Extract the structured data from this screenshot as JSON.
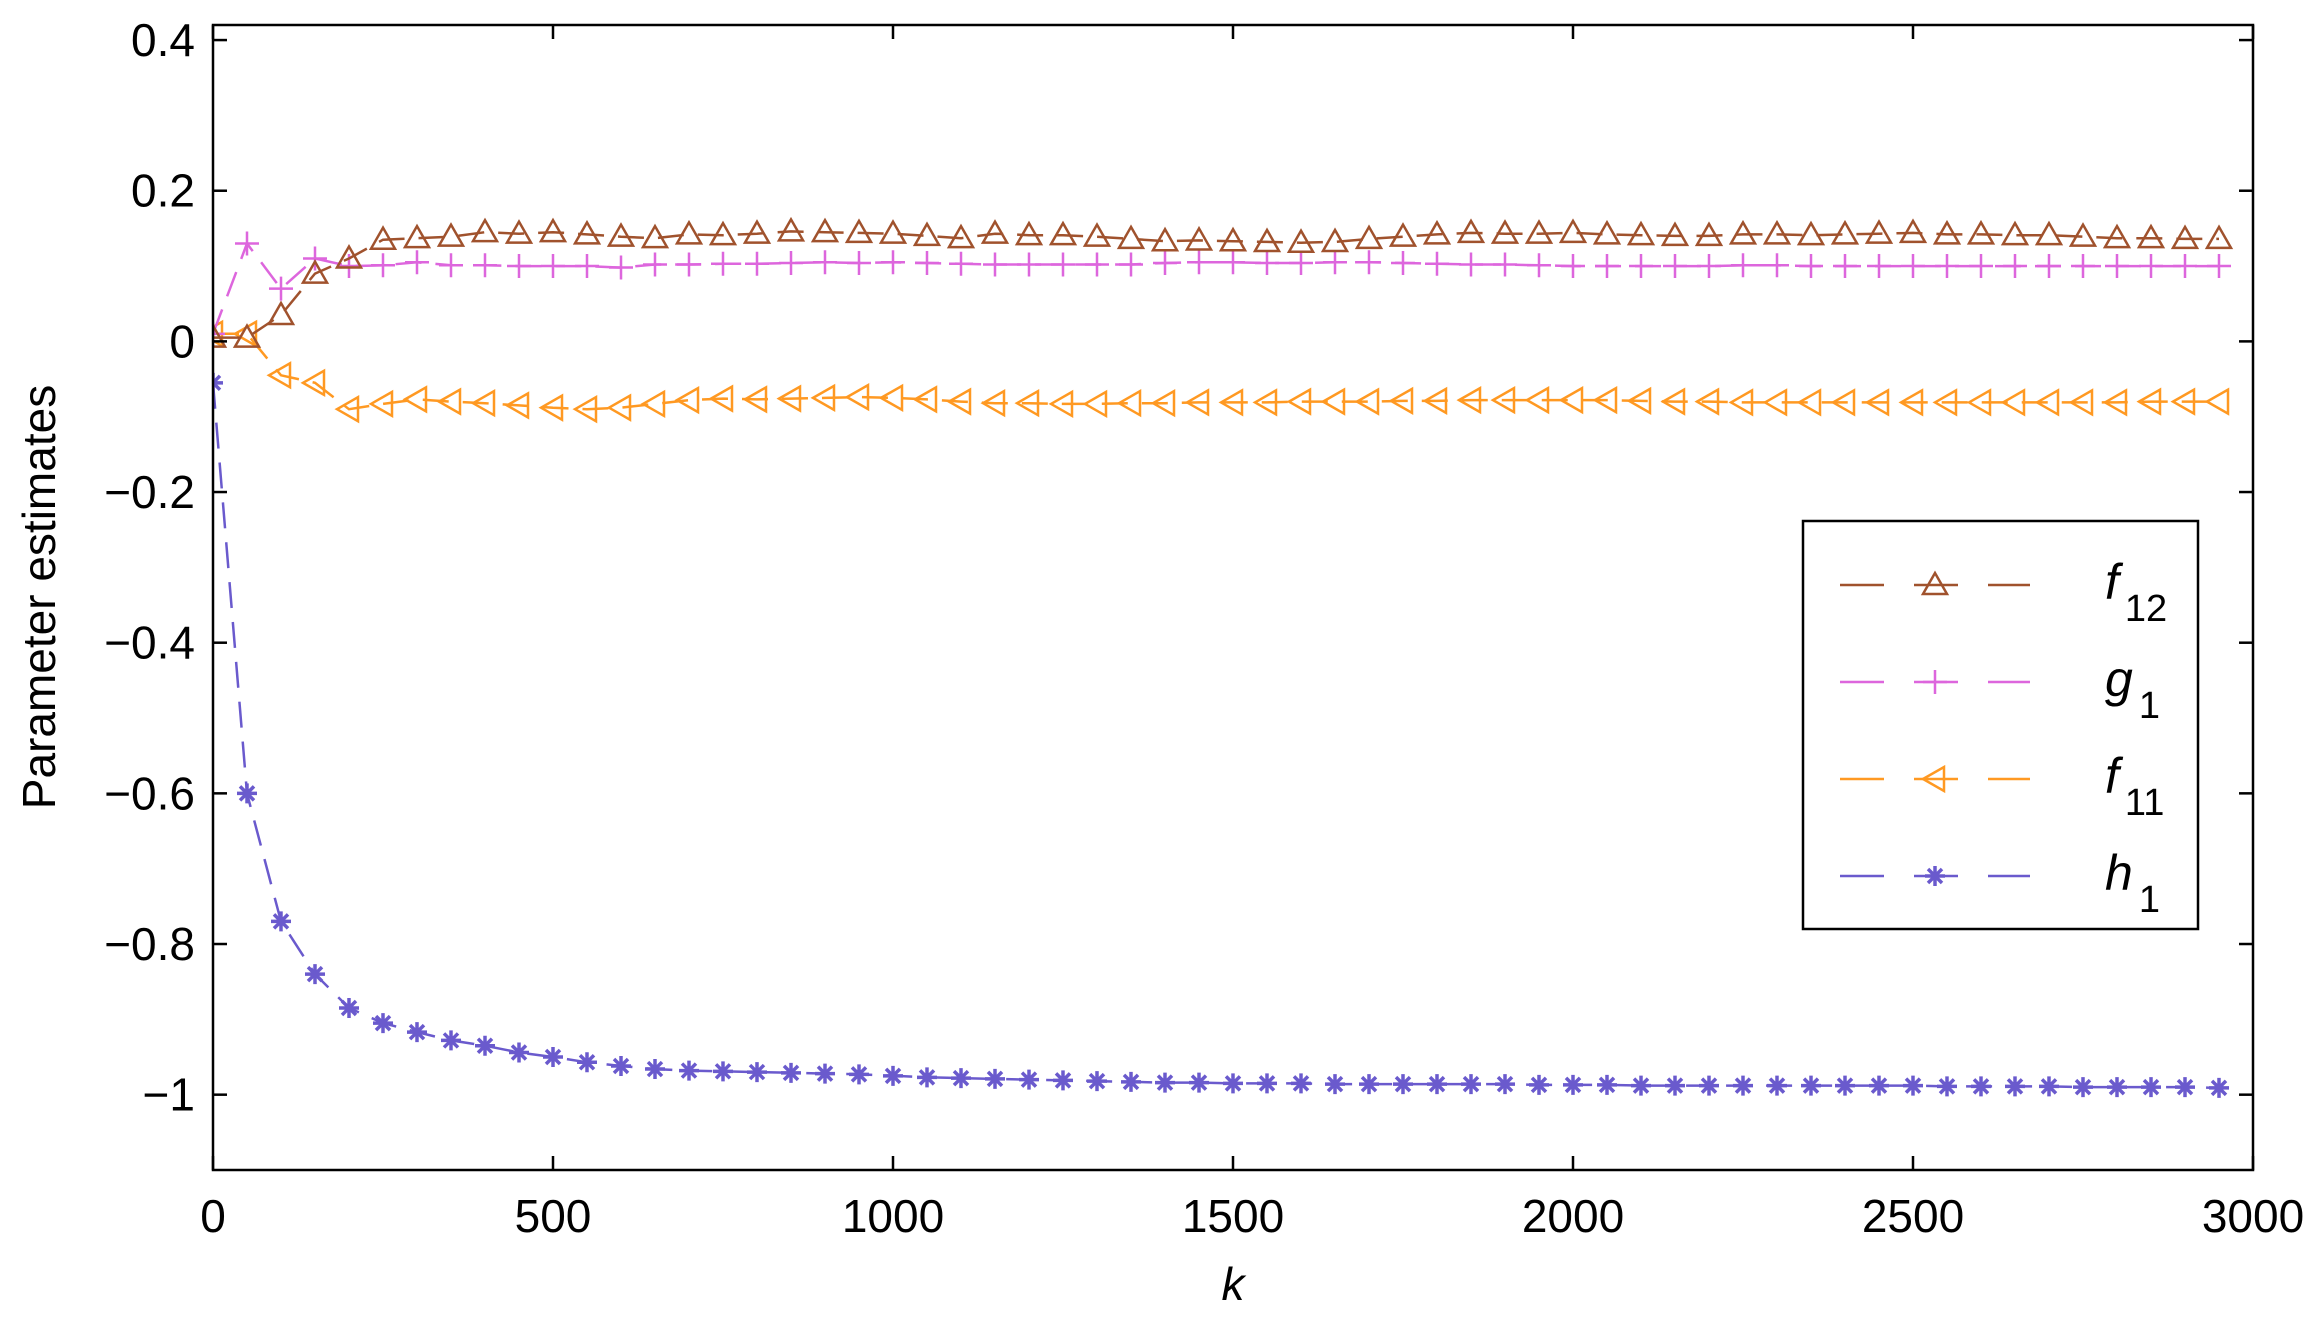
{
  "chart_data": {
    "type": "line",
    "title": "",
    "xlabel": "k",
    "ylabel": "Parameter estimates",
    "xlim": [
      0,
      3000
    ],
    "ylim": [
      -1.1,
      0.42
    ],
    "xticks": [
      0,
      500,
      1000,
      1500,
      2000,
      2500,
      3000
    ],
    "xtick_labels": [
      "0",
      "500",
      "1000",
      "1500",
      "2000",
      "2500",
      "3000"
    ],
    "yticks": [
      0.4,
      0.2,
      0,
      -0.2,
      -0.4,
      -0.6,
      -0.8,
      -1
    ],
    "ytick_labels": [
      "0.4",
      "0.2",
      "0",
      "−0.2",
      "−0.4",
      "−0.6",
      "−0.8",
      "−1"
    ],
    "grid": false,
    "legend_position": "right",
    "x": [
      0,
      50,
      100,
      150,
      200,
      250,
      300,
      350,
      400,
      450,
      500,
      550,
      600,
      650,
      700,
      750,
      800,
      850,
      900,
      950,
      1000,
      1050,
      1100,
      1150,
      1200,
      1250,
      1300,
      1350,
      1400,
      1450,
      1500,
      1550,
      1600,
      1650,
      1700,
      1750,
      1800,
      1850,
      1900,
      1950,
      2000,
      2050,
      2100,
      2150,
      2200,
      2250,
      2300,
      2350,
      2400,
      2450,
      2500,
      2550,
      2600,
      2650,
      2700,
      2750,
      2800,
      2850,
      2900,
      2950
    ],
    "series": [
      {
        "name": "f12",
        "name_base": "f",
        "name_sub": "12",
        "color": "#a0522d",
        "marker": "triangle-up",
        "values": [
          0.005,
          0.005,
          0.035,
          0.09,
          0.11,
          0.135,
          0.137,
          0.139,
          0.145,
          0.143,
          0.145,
          0.142,
          0.139,
          0.137,
          0.142,
          0.141,
          0.143,
          0.146,
          0.145,
          0.144,
          0.143,
          0.14,
          0.137,
          0.143,
          0.141,
          0.141,
          0.139,
          0.136,
          0.133,
          0.134,
          0.133,
          0.132,
          0.131,
          0.132,
          0.136,
          0.139,
          0.142,
          0.144,
          0.143,
          0.143,
          0.144,
          0.142,
          0.141,
          0.14,
          0.14,
          0.142,
          0.142,
          0.141,
          0.142,
          0.143,
          0.144,
          0.142,
          0.142,
          0.141,
          0.141,
          0.139,
          0.137,
          0.137,
          0.136,
          0.136
        ]
      },
      {
        "name": "g1",
        "name_base": "g",
        "name_sub": "1",
        "color": "#dd66dd",
        "marker": "plus",
        "values": [
          0.01,
          0.13,
          0.07,
          0.11,
          0.1,
          0.101,
          0.105,
          0.101,
          0.101,
          0.1,
          0.1,
          0.1,
          0.098,
          0.102,
          0.102,
          0.103,
          0.103,
          0.104,
          0.105,
          0.104,
          0.105,
          0.104,
          0.103,
          0.102,
          0.102,
          0.102,
          0.102,
          0.102,
          0.104,
          0.105,
          0.105,
          0.104,
          0.104,
          0.105,
          0.105,
          0.104,
          0.103,
          0.102,
          0.102,
          0.101,
          0.1,
          0.1,
          0.1,
          0.1,
          0.1,
          0.101,
          0.101,
          0.1,
          0.1,
          0.1,
          0.1,
          0.1,
          0.1,
          0.1,
          0.1,
          0.1,
          0.1,
          0.1,
          0.1,
          0.1
        ]
      },
      {
        "name": "f11",
        "name_base": "f",
        "name_sub": "11",
        "color": "#ff9922",
        "marker": "triangle-left",
        "values": [
          0.01,
          0.01,
          -0.045,
          -0.055,
          -0.09,
          -0.083,
          -0.077,
          -0.08,
          -0.082,
          -0.085,
          -0.088,
          -0.09,
          -0.088,
          -0.083,
          -0.078,
          -0.076,
          -0.077,
          -0.076,
          -0.075,
          -0.074,
          -0.075,
          -0.077,
          -0.08,
          -0.082,
          -0.082,
          -0.083,
          -0.083,
          -0.082,
          -0.082,
          -0.081,
          -0.081,
          -0.081,
          -0.08,
          -0.08,
          -0.08,
          -0.079,
          -0.079,
          -0.078,
          -0.078,
          -0.078,
          -0.078,
          -0.078,
          -0.079,
          -0.08,
          -0.08,
          -0.081,
          -0.081,
          -0.081,
          -0.081,
          -0.081,
          -0.081,
          -0.081,
          -0.081,
          -0.081,
          -0.081,
          -0.081,
          -0.081,
          -0.08,
          -0.08,
          -0.08
        ]
      },
      {
        "name": "h1",
        "name_base": "h",
        "name_sub": "1",
        "color": "#6a5acd",
        "marker": "star",
        "values": [
          -0.055,
          -0.6,
          -0.77,
          -0.84,
          -0.885,
          -0.905,
          -0.917,
          -0.928,
          -0.935,
          -0.944,
          -0.95,
          -0.957,
          -0.962,
          -0.966,
          -0.968,
          -0.969,
          -0.97,
          -0.971,
          -0.972,
          -0.973,
          -0.975,
          -0.977,
          -0.978,
          -0.979,
          -0.98,
          -0.981,
          -0.982,
          -0.983,
          -0.984,
          -0.984,
          -0.985,
          -0.985,
          -0.985,
          -0.986,
          -0.986,
          -0.986,
          -0.986,
          -0.986,
          -0.986,
          -0.987,
          -0.987,
          -0.987,
          -0.988,
          -0.988,
          -0.988,
          -0.988,
          -0.988,
          -0.988,
          -0.988,
          -0.988,
          -0.988,
          -0.989,
          -0.989,
          -0.989,
          -0.989,
          -0.99,
          -0.99,
          -0.99,
          -0.99,
          -0.991
        ]
      }
    ]
  }
}
